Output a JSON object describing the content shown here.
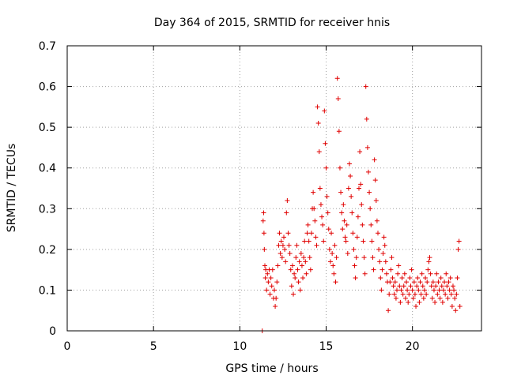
{
  "chart_data": {
    "type": "scatter",
    "title": "Day 364 of 2015, SRMTID for receiver hnis",
    "xlabel": "GPS time / hours",
    "ylabel": "SRMTID / TECUs",
    "xlim": [
      0,
      24
    ],
    "ylim": [
      0,
      0.7
    ],
    "xticks": [
      0,
      5,
      10,
      15,
      20
    ],
    "xtick_labels": [
      "0",
      "5",
      "10",
      "15",
      "20"
    ],
    "yticks": [
      0,
      0.1,
      0.2,
      0.3,
      0.4,
      0.5,
      0.6,
      0.7
    ],
    "ytick_labels": [
      "0",
      "0.1",
      "0.2",
      "0.3",
      "0.4",
      "0.5",
      "0.6",
      "0.7"
    ],
    "grid": true,
    "marker": "+",
    "color": "#e00000",
    "series": [
      {
        "name": "SRMTID",
        "points": [
          [
            11.3,
            0.0
          ],
          [
            11.35,
            0.27
          ],
          [
            11.38,
            0.29
          ],
          [
            11.4,
            0.24
          ],
          [
            11.42,
            0.2
          ],
          [
            11.45,
            0.16
          ],
          [
            11.48,
            0.13
          ],
          [
            11.5,
            0.15
          ],
          [
            11.55,
            0.1
          ],
          [
            11.6,
            0.14
          ],
          [
            11.65,
            0.12
          ],
          [
            11.7,
            0.15
          ],
          [
            11.75,
            0.09
          ],
          [
            11.8,
            0.13
          ],
          [
            11.85,
            0.11
          ],
          [
            11.9,
            0.15
          ],
          [
            11.95,
            0.08
          ],
          [
            12.0,
            0.1
          ],
          [
            12.05,
            0.06
          ],
          [
            12.1,
            0.08
          ],
          [
            12.15,
            0.12
          ],
          [
            12.2,
            0.16
          ],
          [
            12.25,
            0.21
          ],
          [
            12.3,
            0.24
          ],
          [
            12.35,
            0.19
          ],
          [
            12.4,
            0.22
          ],
          [
            12.45,
            0.18
          ],
          [
            12.5,
            0.21
          ],
          [
            12.55,
            0.23
          ],
          [
            12.6,
            0.2
          ],
          [
            12.65,
            0.17
          ],
          [
            12.7,
            0.29
          ],
          [
            12.75,
            0.32
          ],
          [
            12.8,
            0.24
          ],
          [
            12.85,
            0.21
          ],
          [
            12.9,
            0.19
          ],
          [
            12.95,
            0.15
          ],
          [
            13.0,
            0.11
          ],
          [
            13.05,
            0.16
          ],
          [
            13.1,
            0.09
          ],
          [
            13.15,
            0.14
          ],
          [
            13.2,
            0.13
          ],
          [
            13.25,
            0.18
          ],
          [
            13.3,
            0.21
          ],
          [
            13.35,
            0.15
          ],
          [
            13.4,
            0.12
          ],
          [
            13.45,
            0.17
          ],
          [
            13.5,
            0.1
          ],
          [
            13.55,
            0.19
          ],
          [
            13.6,
            0.16
          ],
          [
            13.65,
            0.13
          ],
          [
            13.7,
            0.18
          ],
          [
            13.75,
            0.22
          ],
          [
            13.8,
            0.17
          ],
          [
            13.85,
            0.14
          ],
          [
            13.9,
            0.24
          ],
          [
            13.95,
            0.26
          ],
          [
            14.0,
            0.22
          ],
          [
            14.05,
            0.18
          ],
          [
            14.1,
            0.15
          ],
          [
            14.15,
            0.24
          ],
          [
            14.2,
            0.3
          ],
          [
            14.25,
            0.34
          ],
          [
            14.3,
            0.3
          ],
          [
            14.35,
            0.27
          ],
          [
            14.4,
            0.23
          ],
          [
            14.45,
            0.21
          ],
          [
            14.5,
            0.55
          ],
          [
            14.55,
            0.51
          ],
          [
            14.6,
            0.44
          ],
          [
            14.65,
            0.35
          ],
          [
            14.7,
            0.31
          ],
          [
            14.75,
            0.28
          ],
          [
            14.8,
            0.26
          ],
          [
            14.85,
            0.22
          ],
          [
            14.9,
            0.54
          ],
          [
            14.95,
            0.46
          ],
          [
            15.0,
            0.4
          ],
          [
            15.05,
            0.33
          ],
          [
            15.1,
            0.29
          ],
          [
            15.15,
            0.25
          ],
          [
            15.2,
            0.2
          ],
          [
            15.25,
            0.17
          ],
          [
            15.3,
            0.24
          ],
          [
            15.35,
            0.19
          ],
          [
            15.4,
            0.16
          ],
          [
            15.45,
            0.14
          ],
          [
            15.5,
            0.21
          ],
          [
            15.55,
            0.12
          ],
          [
            15.6,
            0.18
          ],
          [
            15.65,
            0.62
          ],
          [
            15.7,
            0.57
          ],
          [
            15.75,
            0.49
          ],
          [
            15.8,
            0.4
          ],
          [
            15.85,
            0.34
          ],
          [
            15.9,
            0.29
          ],
          [
            15.95,
            0.25
          ],
          [
            16.0,
            0.31
          ],
          [
            16.05,
            0.27
          ],
          [
            16.1,
            0.23
          ],
          [
            16.15,
            0.22
          ],
          [
            16.2,
            0.26
          ],
          [
            16.25,
            0.19
          ],
          [
            16.3,
            0.35
          ],
          [
            16.35,
            0.41
          ],
          [
            16.4,
            0.38
          ],
          [
            16.45,
            0.33
          ],
          [
            16.5,
            0.29
          ],
          [
            16.55,
            0.24
          ],
          [
            16.6,
            0.2
          ],
          [
            16.65,
            0.16
          ],
          [
            16.7,
            0.13
          ],
          [
            16.75,
            0.18
          ],
          [
            16.8,
            0.23
          ],
          [
            16.85,
            0.28
          ],
          [
            16.9,
            0.35
          ],
          [
            16.95,
            0.44
          ],
          [
            17.0,
            0.36
          ],
          [
            17.05,
            0.31
          ],
          [
            17.1,
            0.26
          ],
          [
            17.15,
            0.22
          ],
          [
            17.2,
            0.18
          ],
          [
            17.25,
            0.14
          ],
          [
            17.3,
            0.6
          ],
          [
            17.35,
            0.52
          ],
          [
            17.4,
            0.45
          ],
          [
            17.45,
            0.39
          ],
          [
            17.5,
            0.34
          ],
          [
            17.55,
            0.3
          ],
          [
            17.6,
            0.26
          ],
          [
            17.65,
            0.22
          ],
          [
            17.7,
            0.18
          ],
          [
            17.75,
            0.15
          ],
          [
            17.8,
            0.42
          ],
          [
            17.85,
            0.37
          ],
          [
            17.9,
            0.32
          ],
          [
            17.95,
            0.27
          ],
          [
            18.0,
            0.24
          ],
          [
            18.05,
            0.2
          ],
          [
            18.1,
            0.17
          ],
          [
            18.15,
            0.13
          ],
          [
            18.2,
            0.1
          ],
          [
            18.25,
            0.15
          ],
          [
            18.3,
            0.19
          ],
          [
            18.35,
            0.23
          ],
          [
            18.4,
            0.21
          ],
          [
            18.45,
            0.17
          ],
          [
            18.5,
            0.14
          ],
          [
            18.55,
            0.12
          ],
          [
            18.6,
            0.05
          ],
          [
            18.65,
            0.09
          ],
          [
            18.7,
            0.12
          ],
          [
            18.75,
            0.15
          ],
          [
            18.8,
            0.18
          ],
          [
            18.85,
            0.13
          ],
          [
            18.9,
            0.11
          ],
          [
            18.95,
            0.09
          ],
          [
            19.0,
            0.12
          ],
          [
            19.05,
            0.08
          ],
          [
            19.1,
            0.1
          ],
          [
            19.15,
            0.14
          ],
          [
            19.2,
            0.16
          ],
          [
            19.25,
            0.11
          ],
          [
            19.3,
            0.07
          ],
          [
            19.35,
            0.1
          ],
          [
            19.4,
            0.13
          ],
          [
            19.45,
            0.09
          ],
          [
            19.5,
            0.11
          ],
          [
            19.55,
            0.14
          ],
          [
            19.6,
            0.08
          ],
          [
            19.65,
            0.12
          ],
          [
            19.7,
            0.1
          ],
          [
            19.75,
            0.07
          ],
          [
            19.8,
            0.09
          ],
          [
            19.85,
            0.13
          ],
          [
            19.9,
            0.11
          ],
          [
            19.95,
            0.15
          ],
          [
            20.0,
            0.1
          ],
          [
            20.05,
            0.08
          ],
          [
            20.1,
            0.12
          ],
          [
            20.15,
            0.09
          ],
          [
            20.2,
            0.06
          ],
          [
            20.25,
            0.11
          ],
          [
            20.3,
            0.13
          ],
          [
            20.35,
            0.1
          ],
          [
            20.4,
            0.07
          ],
          [
            20.45,
            0.12
          ],
          [
            20.5,
            0.09
          ],
          [
            20.55,
            0.14
          ],
          [
            20.6,
            0.11
          ],
          [
            20.65,
            0.08
          ],
          [
            20.7,
            0.1
          ],
          [
            20.75,
            0.13
          ],
          [
            20.8,
            0.09
          ],
          [
            20.85,
            0.12
          ],
          [
            20.9,
            0.15
          ],
          [
            20.95,
            0.17
          ],
          [
            21.0,
            0.18
          ],
          [
            21.05,
            0.14
          ],
          [
            21.1,
            0.11
          ],
          [
            21.15,
            0.08
          ],
          [
            21.2,
            0.12
          ],
          [
            21.25,
            0.1
          ],
          [
            21.3,
            0.07
          ],
          [
            21.35,
            0.11
          ],
          [
            21.4,
            0.14
          ],
          [
            21.45,
            0.09
          ],
          [
            21.5,
            0.12
          ],
          [
            21.55,
            0.1
          ],
          [
            21.6,
            0.08
          ],
          [
            21.65,
            0.13
          ],
          [
            21.7,
            0.11
          ],
          [
            21.75,
            0.07
          ],
          [
            21.8,
            0.1
          ],
          [
            21.85,
            0.12
          ],
          [
            21.9,
            0.09
          ],
          [
            21.95,
            0.14
          ],
          [
            22.0,
            0.11
          ],
          [
            22.05,
            0.08
          ],
          [
            22.1,
            0.12
          ],
          [
            22.15,
            0.1
          ],
          [
            22.2,
            0.13
          ],
          [
            22.25,
            0.09
          ],
          [
            22.3,
            0.06
          ],
          [
            22.35,
            0.11
          ],
          [
            22.4,
            0.1
          ],
          [
            22.45,
            0.08
          ],
          [
            22.5,
            0.05
          ],
          [
            22.55,
            0.09
          ],
          [
            22.6,
            0.13
          ],
          [
            22.65,
            0.2
          ],
          [
            22.7,
            0.22
          ],
          [
            22.75,
            0.06
          ]
        ]
      }
    ]
  }
}
